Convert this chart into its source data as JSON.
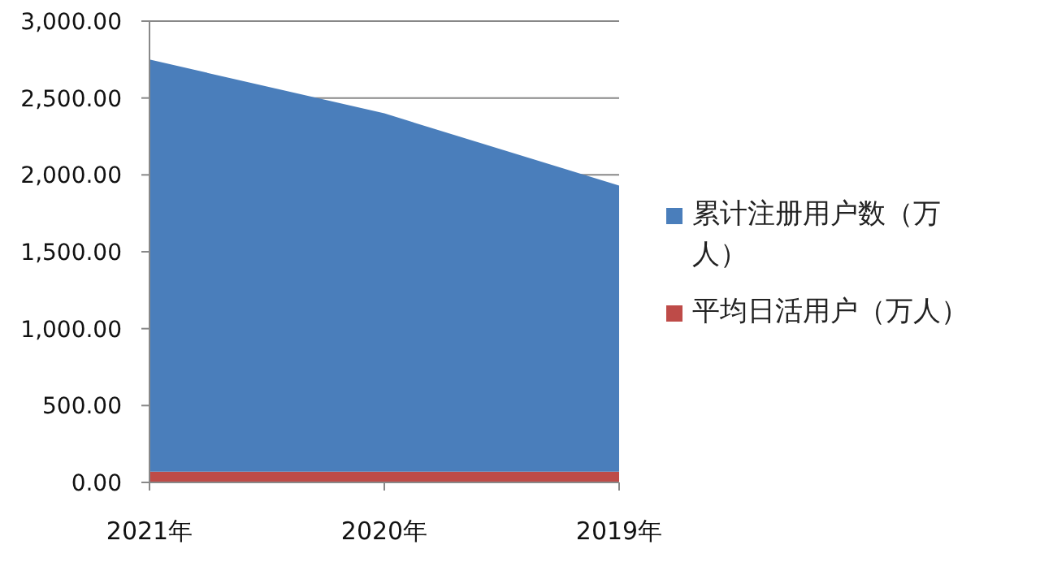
{
  "chart_data": {
    "type": "area",
    "categories": [
      "2021年",
      "2020年",
      "2019年"
    ],
    "series": [
      {
        "name": "累计注册用户数（万人）",
        "color": "#4a7ebb",
        "values": [
          2750,
          2400,
          1930
        ]
      },
      {
        "name": "平均日活用户（万人）",
        "color": "#be4b48",
        "values": [
          70,
          70,
          70
        ]
      }
    ],
    "ylim": [
      0,
      3000
    ],
    "yticks": [
      {
        "value": 0,
        "label": "0.00"
      },
      {
        "value": 500,
        "label": "500.00"
      },
      {
        "value": 1000,
        "label": "1,000.00"
      },
      {
        "value": 1500,
        "label": "1,500.00"
      },
      {
        "value": 2000,
        "label": "2,000.00"
      },
      {
        "value": 2500,
        "label": "2,500.00"
      },
      {
        "value": 3000,
        "label": "3,000.00"
      }
    ],
    "grid": "y",
    "legend": "right"
  }
}
